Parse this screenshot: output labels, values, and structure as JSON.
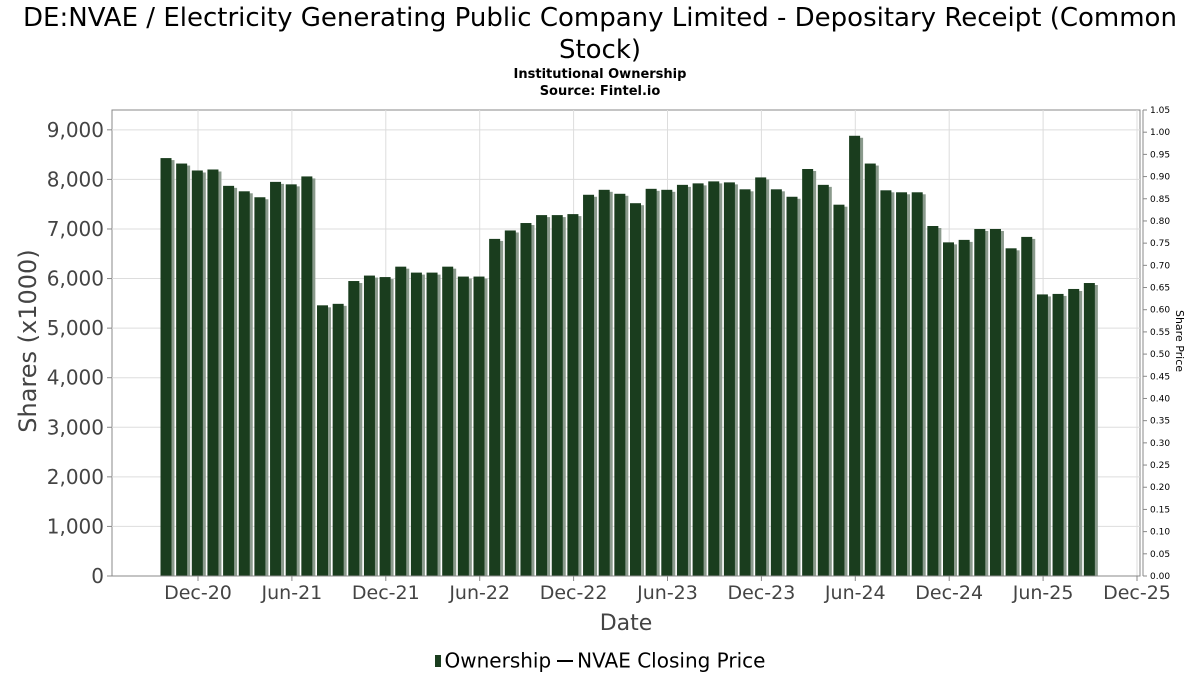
{
  "chart_data": {
    "type": "bar",
    "title": "DE:NVAE / Electricity Generating Public Company Limited - Depositary Receipt (Common Stock)",
    "subtitle": "Institutional Ownership",
    "source": "Source: Fintel.io",
    "xlabel": "Date",
    "ylabel": "Shares (x1000)",
    "y2label": "Share Price",
    "ylim": [
      0,
      9400
    ],
    "y2lim": [
      0,
      1.05
    ],
    "yticks": [
      "0",
      "1,000",
      "2,000",
      "3,000",
      "4,000",
      "5,000",
      "6,000",
      "7,000",
      "8,000",
      "9,000"
    ],
    "y2ticks": [
      "0.00",
      "0.05",
      "0.10",
      "0.15",
      "0.20",
      "0.25",
      "0.30",
      "0.35",
      "0.40",
      "0.45",
      "0.50",
      "0.55",
      "0.60",
      "0.65",
      "0.70",
      "0.75",
      "0.80",
      "0.85",
      "0.90",
      "0.95",
      "1.00",
      "1.05"
    ],
    "xticks": [
      "Dec-20",
      "Jun-21",
      "Dec-21",
      "Jun-22",
      "Dec-22",
      "Jun-23",
      "Dec-23",
      "Jun-24",
      "Dec-24",
      "Jun-25",
      "Dec-25"
    ],
    "grid": true,
    "legend_position": "bottom",
    "series": [
      {
        "name": "Ownership",
        "color": "#1a3d1e",
        "values": [
          8430,
          8320,
          8180,
          8200,
          7870,
          7760,
          7640,
          7950,
          7900,
          8060,
          5460,
          5490,
          5950,
          6060,
          6030,
          6240,
          6120,
          6120,
          6240,
          6040,
          6040,
          6800,
          6970,
          7120,
          7280,
          7280,
          7300,
          7690,
          7790,
          7710,
          7520,
          7810,
          7790,
          7890,
          7920,
          7960,
          7940,
          7800,
          8040,
          7800,
          7650,
          8210,
          7890,
          7490,
          8880,
          8320,
          7780,
          7740,
          7740,
          7060,
          6730,
          6780,
          7000,
          7000,
          6610,
          6840,
          5680,
          5690,
          5790,
          5910
        ]
      },
      {
        "name": "NVAE Closing Price",
        "color": "#000000",
        "values": []
      }
    ]
  }
}
